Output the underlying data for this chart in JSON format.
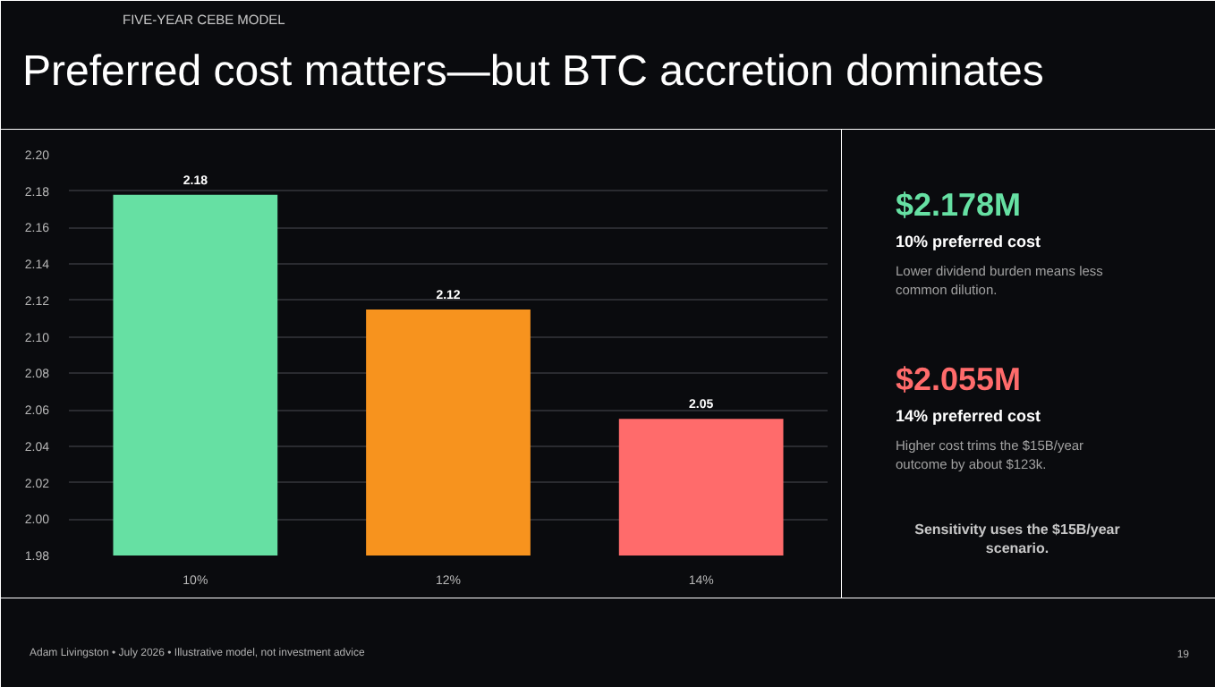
{
  "chart_data": {
    "type": "bar",
    "subtitle": "FIVE-YEAR CEBE MODEL",
    "title": "Preferred cost matters—but BTC accretion dominates",
    "categories": [
      "10%",
      "12%",
      "14%"
    ],
    "values": [
      2.178,
      2.115,
      2.055
    ],
    "value_labels": [
      "2.18",
      "2.12",
      "2.05"
    ],
    "colors": [
      "#66e0a3",
      "#f7931e",
      "#ff6b6b"
    ],
    "ylim": [
      1.98,
      2.2
    ],
    "yticks": [
      1.98,
      {
        "value": 2,
        "label": "2.00"
      },
      2.02,
      2.04,
      2.06,
      2.08,
      {
        "value": 2.1,
        "label": "2.10"
      },
      2.12,
      2.14,
      2.16,
      2.18,
      {
        "value": 2.2,
        "label": "2.20"
      }
    ],
    "grid": "y",
    "annotations": [
      "$2.178M",
      "10% preferred cost",
      "Lower dividend burden means less common dilution.",
      "$2.055M",
      "14% preferred cost",
      "Higher cost trims the $15B/year outcome by about $123k.",
      "Sensitivity uses the $15B/year scenario.",
      "Adam Livingston • July 2026 • Illustrative model, not investment advice",
      "19"
    ]
  }
}
